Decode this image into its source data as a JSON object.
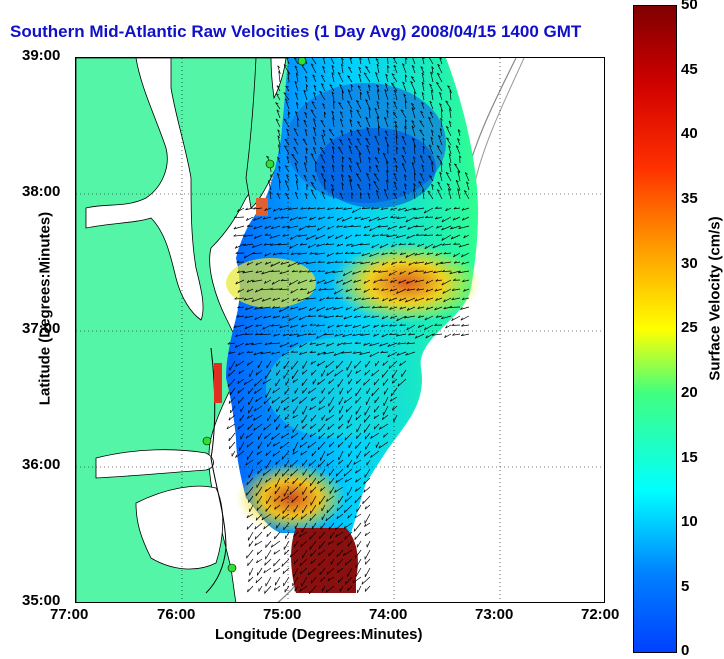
{
  "title": "Southern Mid-Atlantic Raw Velocities (1 Day Avg) 2008/04/15 1400 GMT",
  "map": {
    "x_label": "Longitude (Degrees:Minutes)",
    "y_label": "Latitude (Degrees:Minutes)",
    "x_ticks": [
      "77:00",
      "76:00",
      "75:00",
      "74:00",
      "73:00",
      "72:00"
    ],
    "y_ticks": [
      "39:00",
      "38:00",
      "37:00",
      "36:00",
      "35:00"
    ],
    "land_color": "#55f5a8",
    "water_color": "#ffffff"
  },
  "colorbar": {
    "label": "Surface Velocity (cm/s)",
    "ticks": [
      "50",
      "45",
      "40",
      "35",
      "30",
      "25",
      "20",
      "15",
      "10",
      "5",
      "0"
    ],
    "min": 0,
    "max": 50,
    "colormap": "jet"
  },
  "chart_data": {
    "type": "heatmap",
    "title": "Southern Mid-Atlantic Raw Velocities (1 Day Avg) 2008/04/15 1400 GMT",
    "xlabel": "Longitude (Degrees:Minutes)",
    "ylabel": "Latitude (Degrees:Minutes)",
    "xlim": [
      -77,
      -72
    ],
    "ylim": [
      35,
      39
    ],
    "value_range": [
      0,
      50
    ],
    "grid": true
  }
}
